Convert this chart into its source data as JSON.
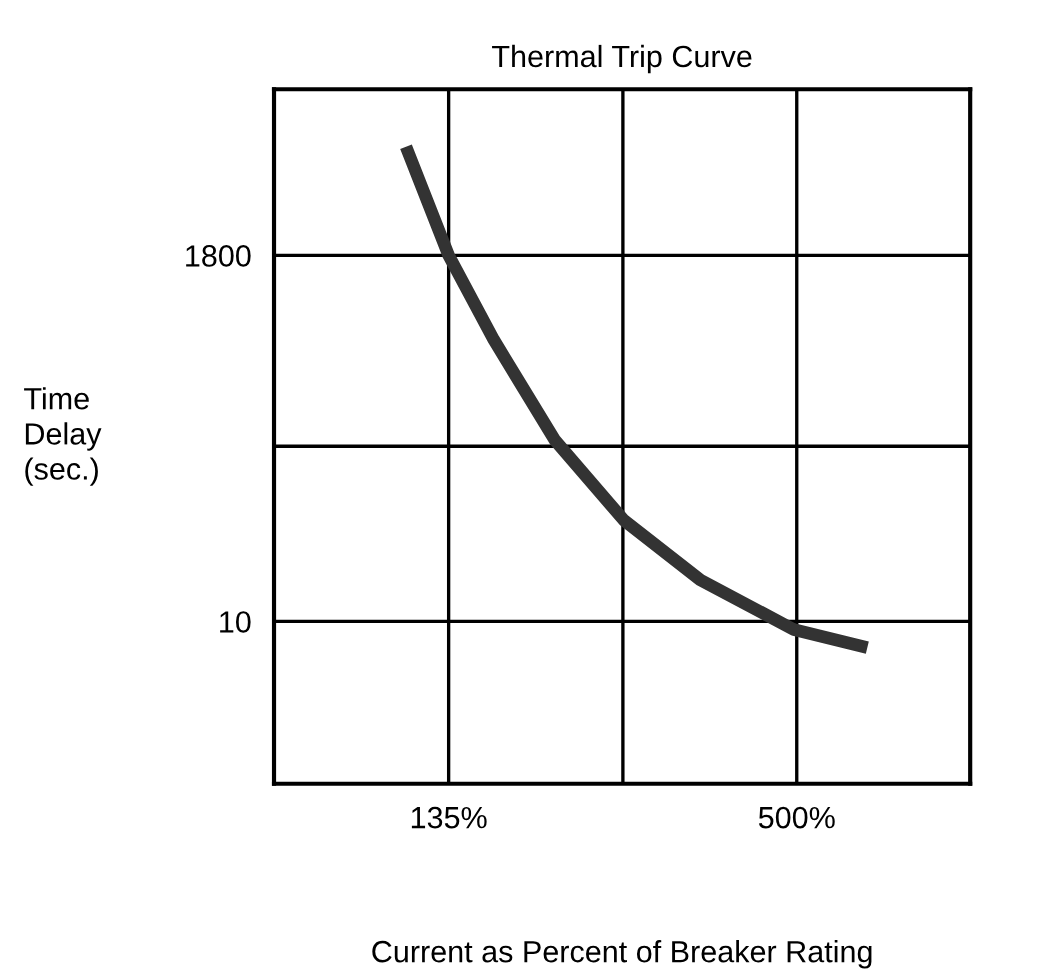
{
  "chart_data": {
    "type": "line",
    "title": "Thermal Trip Curve",
    "xlabel": "Current as Percent of Breaker Rating",
    "ylabel": "Time\nDelay\n(sec.)",
    "log": "xy",
    "grid": true,
    "marker": "none",
    "line_style": "solid",
    "xlim": [
      70,
      960
    ],
    "ylim": [
      1,
      19000
    ],
    "xticks": [
      {
        "value": 135,
        "label": "135%"
      },
      {
        "value": 260,
        "label": null
      },
      {
        "value": 500,
        "label": "500%"
      }
    ],
    "yticks": [
      {
        "value": 10,
        "label": "10"
      },
      {
        "value": 120,
        "label": null
      },
      1800
    ],
    "series": [
      {
        "color": "#333333",
        "x": [
          115,
          135,
          160,
          201,
          261,
          348,
          495,
          652
        ],
        "values": [
          8400,
          1800,
          543,
          132,
          42,
          18,
          8.9,
          6.9
        ]
      }
    ]
  }
}
